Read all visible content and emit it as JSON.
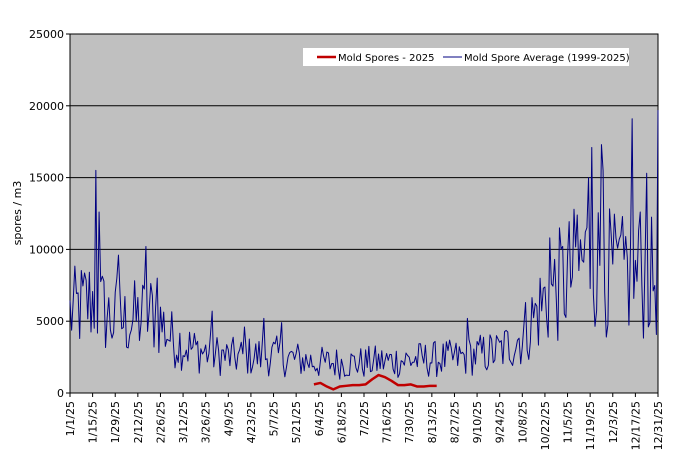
{
  "chart_data": {
    "type": "line",
    "title": "",
    "xlabel": "",
    "ylabel": "spores / m3",
    "ylim": [
      0,
      25000
    ],
    "yticks": [
      0,
      5000,
      10000,
      15000,
      20000,
      25000
    ],
    "ytick_labels": [
      "0",
      "5000",
      "10000",
      "15000",
      "20000",
      "25000"
    ],
    "x_start_date": "1/1/25",
    "x_end_date": "12/31/25",
    "xtick_labels": [
      "1/1/25",
      "1/15/25",
      "1/29/25",
      "2/12/25",
      "2/26/25",
      "3/12/25",
      "3/26/25",
      "4/9/25",
      "4/23/25",
      "5/7/25",
      "5/21/25",
      "6/4/25",
      "6/18/25",
      "7/2/25",
      "7/16/25",
      "7/30/25",
      "8/13/25",
      "8/27/25",
      "9/10/25",
      "9/24/25",
      "10/8/25",
      "10/22/25",
      "11/5/25",
      "11/19/25",
      "12/3/25",
      "12/17/25",
      "12/31/25"
    ],
    "grid": "horizontal",
    "legend": "top-right",
    "plot_background": "#c0c0c0",
    "series": [
      {
        "name": "Mold Spores - 2025",
        "color": "#c00000",
        "points": [
          [
            "6/1/25",
            600
          ],
          [
            "6/5/25",
            700
          ],
          [
            "6/9/25",
            450
          ],
          [
            "6/13/25",
            250
          ],
          [
            "6/17/25",
            450
          ],
          [
            "6/21/25",
            500
          ],
          [
            "6/25/25",
            550
          ],
          [
            "6/29/25",
            550
          ],
          [
            "7/3/25",
            600
          ],
          [
            "7/7/25",
            950
          ],
          [
            "7/11/25",
            1250
          ],
          [
            "7/15/25",
            1100
          ],
          [
            "7/19/25",
            850
          ],
          [
            "7/23/25",
            550
          ],
          [
            "7/27/25",
            550
          ],
          [
            "7/31/25",
            600
          ],
          [
            "8/4/25",
            450
          ],
          [
            "8/8/25",
            450
          ],
          [
            "8/12/25",
            500
          ],
          [
            "8/16/25",
            500
          ]
        ]
      },
      {
        "name": "Mold Spore Average (1999-2025)",
        "color": "#000080",
        "anchors": [
          [
            "1/1/25",
            5500
          ],
          [
            "1/8/25",
            6000
          ],
          [
            "1/15/25",
            6500
          ],
          [
            "1/29/25",
            4800
          ],
          [
            "2/12/25",
            5200
          ],
          [
            "2/22/25",
            5600
          ],
          [
            "3/5/25",
            3800
          ],
          [
            "3/19/25",
            3000
          ],
          [
            "4/9/25",
            2500
          ],
          [
            "5/7/25",
            2600
          ],
          [
            "6/4/25",
            2100
          ],
          [
            "7/2/25",
            2100
          ],
          [
            "7/30/25",
            2300
          ],
          [
            "8/27/25",
            2400
          ],
          [
            "9/24/25",
            2900
          ],
          [
            "10/8/25",
            4000
          ],
          [
            "10/22/25",
            6500
          ],
          [
            "11/5/25",
            8000
          ],
          [
            "11/19/25",
            9500
          ],
          [
            "12/3/25",
            8200
          ],
          [
            "12/17/25",
            7800
          ],
          [
            "12/31/25",
            8000
          ]
        ],
        "spikes": [
          [
            "1/17/25",
            15500
          ],
          [
            "1/19/25",
            12600
          ],
          [
            "1/30/25",
            8000
          ],
          [
            "1/31/25",
            9600
          ],
          [
            "2/17/25",
            10200
          ],
          [
            "2/24/25",
            8000
          ],
          [
            "3/30/25",
            5700
          ],
          [
            "4/19/25",
            4600
          ],
          [
            "5/1/25",
            5200
          ],
          [
            "5/12/25",
            4900
          ],
          [
            "9/4/25",
            5200
          ],
          [
            "10/25/25",
            10800
          ],
          [
            "11/11/25",
            12400
          ],
          [
            "11/18/25",
            15000
          ],
          [
            "11/20/25",
            17100
          ],
          [
            "11/26/25",
            17300
          ],
          [
            "11/27/25",
            15500
          ],
          [
            "12/7/25",
            10700
          ],
          [
            "12/11/25",
            10900
          ],
          [
            "12/15/25",
            19100
          ],
          [
            "12/20/25",
            12600
          ],
          [
            "12/24/25",
            15300
          ],
          [
            "12/31/25",
            19700
          ]
        ]
      }
    ]
  }
}
